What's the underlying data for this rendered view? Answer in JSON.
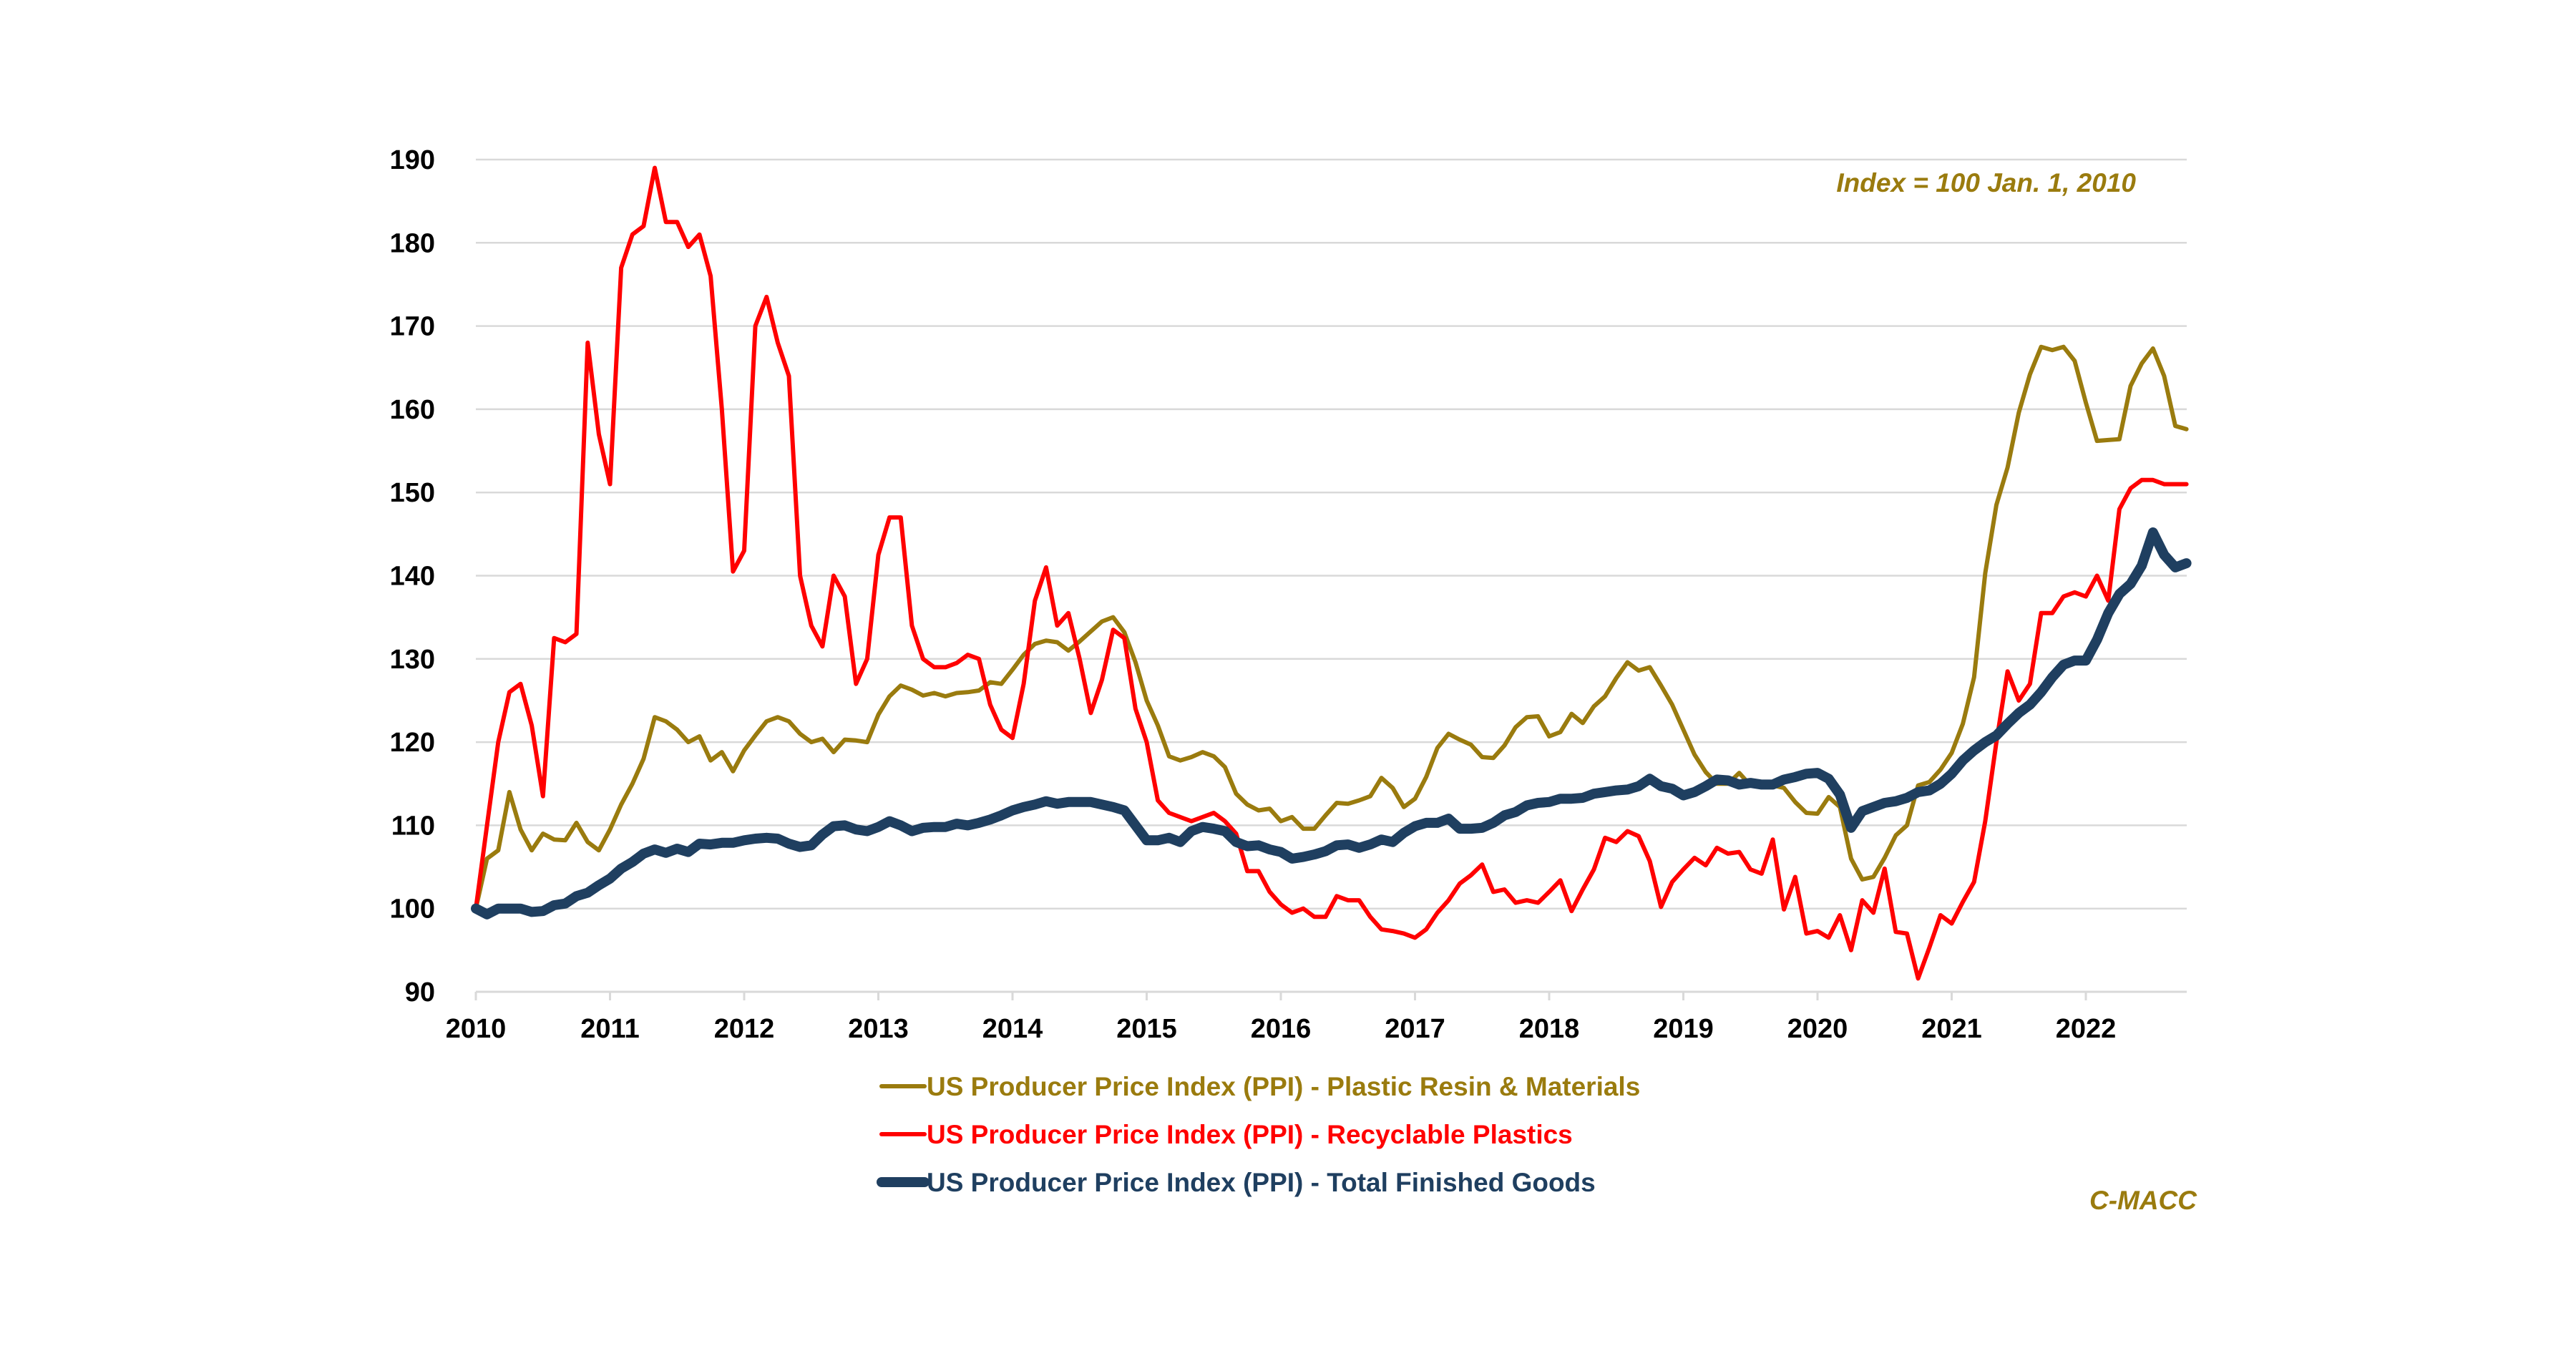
{
  "chart_data": {
    "type": "line",
    "annotation": "Index = 100 Jan. 1, 2010",
    "source": "C-MACC",
    "ylim": [
      90,
      190
    ],
    "yticks": [
      90,
      100,
      110,
      120,
      130,
      140,
      150,
      160,
      170,
      180,
      190
    ],
    "xticks": [
      "2010",
      "2011",
      "2012",
      "2013",
      "2014",
      "2015",
      "2016",
      "2017",
      "2018",
      "2019",
      "2020",
      "2021",
      "2022"
    ],
    "xlim": [
      "2010-01",
      "2022-10"
    ],
    "grid": "horizontal",
    "legend_position": "bottom",
    "x": [
      "2010-01",
      "2010-02",
      "2010-03",
      "2010-04",
      "2010-05",
      "2010-06",
      "2010-07",
      "2010-08",
      "2010-09",
      "2010-10",
      "2010-11",
      "2010-12",
      "2011-01",
      "2011-02",
      "2011-03",
      "2011-04",
      "2011-05",
      "2011-06",
      "2011-07",
      "2011-08",
      "2011-09",
      "2011-10",
      "2011-11",
      "2011-12",
      "2012-01",
      "2012-02",
      "2012-03",
      "2012-04",
      "2012-05",
      "2012-06",
      "2012-07",
      "2012-08",
      "2012-09",
      "2012-10",
      "2012-11",
      "2012-12",
      "2013-01",
      "2013-02",
      "2013-03",
      "2013-04",
      "2013-05",
      "2013-06",
      "2013-07",
      "2013-08",
      "2013-09",
      "2013-10",
      "2013-11",
      "2013-12",
      "2014-01",
      "2014-02",
      "2014-03",
      "2014-04",
      "2014-05",
      "2014-06",
      "2014-07",
      "2014-08",
      "2014-09",
      "2014-10",
      "2014-11",
      "2014-12",
      "2015-01",
      "2015-02",
      "2015-03",
      "2015-04",
      "2015-05",
      "2015-06",
      "2015-07",
      "2015-08",
      "2015-09",
      "2015-10",
      "2015-11",
      "2015-12",
      "2016-01",
      "2016-02",
      "2016-03",
      "2016-04",
      "2016-05",
      "2016-06",
      "2016-07",
      "2016-08",
      "2016-09",
      "2016-10",
      "2016-11",
      "2016-12",
      "2017-01",
      "2017-02",
      "2017-03",
      "2017-04",
      "2017-05",
      "2017-06",
      "2017-07",
      "2017-08",
      "2017-09",
      "2017-10",
      "2017-11",
      "2017-12",
      "2018-01",
      "2018-02",
      "2018-03",
      "2018-04",
      "2018-05",
      "2018-06",
      "2018-07",
      "2018-08",
      "2018-09",
      "2018-10",
      "2018-11",
      "2018-12",
      "2019-01",
      "2019-02",
      "2019-03",
      "2019-04",
      "2019-05",
      "2019-06",
      "2019-07",
      "2019-08",
      "2019-09",
      "2019-10",
      "2019-11",
      "2019-12",
      "2020-01",
      "2020-02",
      "2020-03",
      "2020-04",
      "2020-05",
      "2020-06",
      "2020-07",
      "2020-08",
      "2020-09",
      "2020-10",
      "2020-11",
      "2020-12",
      "2021-01",
      "2021-02",
      "2021-03",
      "2021-04",
      "2021-05",
      "2021-06",
      "2021-07",
      "2021-08",
      "2021-09",
      "2021-10",
      "2021-11",
      "2021-12",
      "2022-01",
      "2022-02",
      "2022-03",
      "2022-04",
      "2022-05",
      "2022-06",
      "2022-07",
      "2022-08",
      "2022-09",
      "2022-10"
    ],
    "series": [
      {
        "name": "US Producer Price Index (PPI) - Plastic Resin & Materials",
        "color": "#9A7B0E",
        "values": [
          100,
          106,
          107,
          114,
          109.5,
          107,
          109,
          108.3,
          108.2,
          110.3,
          108,
          107,
          109.5,
          112.5,
          115,
          118,
          123,
          122.5,
          121.5,
          120,
          120.7,
          117.8,
          118.8,
          116.5,
          119,
          120.8,
          122.5,
          123,
          122.5,
          121,
          120,
          120.4,
          118.8,
          120.3,
          120.2,
          120,
          123.3,
          125.5,
          126.8,
          126.3,
          125.6,
          125.9,
          125.5,
          125.9,
          126,
          126.2,
          127.2,
          127,
          128.7,
          130.5,
          131.8,
          132.2,
          132,
          131,
          132.1,
          133.3,
          134.5,
          135,
          133.2,
          129.6,
          125,
          122,
          118.3,
          117.8,
          118.2,
          118.8,
          118.3,
          117,
          113.8,
          112.5,
          111.8,
          112,
          110.5,
          111,
          109.6,
          109.6,
          111.2,
          112.7,
          112.6,
          113,
          113.5,
          115.7,
          114.5,
          112.2,
          113.2,
          115.8,
          119.3,
          121,
          120.3,
          119.7,
          118.2,
          118.1,
          119.6,
          121.8,
          123,
          123.1,
          120.7,
          121.2,
          123.4,
          122.3,
          124.3,
          125.5,
          127.7,
          129.6,
          128.6,
          129,
          126.8,
          124.5,
          121.5,
          118.5,
          116.4,
          115,
          115,
          116.3,
          114.8,
          115,
          114.8,
          114.5,
          112.8,
          111.5,
          111.4,
          113.4,
          112.2,
          106,
          103.5,
          103.8,
          106.1,
          108.8,
          110,
          114.8,
          115.2,
          116.7,
          118.7,
          122.2,
          127.8,
          140.3,
          148.5,
          153,
          159.6,
          164.2,
          167.5,
          167.1,
          167.5,
          165.8,
          160.8,
          156.2,
          156.3,
          156.4,
          162.8,
          165.5,
          167.3,
          164,
          158,
          157.6
        ]
      },
      {
        "name": "US Producer Price Index (PPI) - Recyclable Plastics",
        "color": "#FF0000",
        "values": [
          100,
          110,
          120,
          126,
          127,
          122,
          113.5,
          132.5,
          132,
          133,
          168,
          157,
          151,
          177,
          181,
          182,
          189,
          182.5,
          182.5,
          179.5,
          181,
          176,
          160,
          140.5,
          143,
          170,
          173.5,
          168,
          164,
          140,
          134,
          131.5,
          140,
          137.5,
          127,
          130,
          142.5,
          147,
          147,
          134,
          130,
          129,
          129,
          129.5,
          130.5,
          130,
          124.5,
          121.5,
          120.5,
          127,
          137,
          141,
          134,
          135.5,
          130,
          123.5,
          127.5,
          133.5,
          132.5,
          124,
          120,
          113,
          111.5,
          111,
          110.5,
          111,
          111.5,
          110.5,
          109,
          104.5,
          104.5,
          102,
          100.5,
          99.5,
          100,
          99,
          99,
          101.5,
          101,
          101,
          99,
          97.5,
          97.3,
          97,
          96.5,
          97.5,
          99.5,
          101,
          103,
          104,
          105.3,
          102,
          102.3,
          100.7,
          101,
          100.7,
          102,
          103.4,
          99.7,
          102.3,
          104.7,
          108.5,
          108,
          109.3,
          108.7,
          105.7,
          100.2,
          103.2,
          104.7,
          106.1,
          105.2,
          107.3,
          106.6,
          106.8,
          104.7,
          104.2,
          108.3,
          99.9,
          103.8,
          97,
          97.3,
          96.5,
          99.2,
          95,
          101,
          99.5,
          104.8,
          97.2,
          97,
          91.6,
          95.3,
          99.2,
          98.2,
          100.8,
          103.2,
          110.5,
          120,
          128.5,
          125,
          127,
          135.5,
          135.5,
          137.5,
          138,
          137.5,
          140,
          137,
          148,
          150.5,
          151.5,
          151.5,
          151,
          151,
          151
        ]
      },
      {
        "name": "US Producer Price Index (PPI) - Total Finished Goods",
        "color": "#1F3F60",
        "values": [
          100,
          99.3,
          100,
          100,
          100,
          99.6,
          99.7,
          100.4,
          100.6,
          101.5,
          101.9,
          102.8,
          103.6,
          104.8,
          105.6,
          106.6,
          107.1,
          106.7,
          107.2,
          106.8,
          107.8,
          107.7,
          107.9,
          107.9,
          108.2,
          108.4,
          108.5,
          108.4,
          107.8,
          107.4,
          107.6,
          108.9,
          109.9,
          110,
          109.5,
          109.3,
          109.8,
          110.5,
          110,
          109.3,
          109.7,
          109.8,
          109.8,
          110.2,
          110,
          110.3,
          110.7,
          111.2,
          111.8,
          112.2,
          112.5,
          112.9,
          112.6,
          112.8,
          112.8,
          112.8,
          112.5,
          112.2,
          111.8,
          110,
          108.2,
          108.2,
          108.5,
          108,
          109.3,
          109.8,
          109.6,
          109.3,
          108,
          107.5,
          107.6,
          107.1,
          106.8,
          106,
          106.2,
          106.5,
          106.9,
          107.6,
          107.7,
          107.3,
          107.7,
          108.3,
          108,
          109.1,
          109.9,
          110.3,
          110.3,
          110.8,
          109.6,
          109.6,
          109.7,
          110.3,
          111.2,
          111.6,
          112.4,
          112.7,
          112.8,
          113.2,
          113.2,
          113.3,
          113.8,
          114,
          114.2,
          114.3,
          114.7,
          115.6,
          114.7,
          114.4,
          113.6,
          114,
          114.7,
          115.5,
          115.4,
          114.9,
          115.1,
          114.9,
          114.9,
          115.5,
          115.8,
          116.2,
          116.3,
          115.6,
          113.7,
          109.7,
          111.7,
          112.2,
          112.7,
          112.9,
          113.3,
          114,
          114.2,
          115,
          116.2,
          117.8,
          119,
          120,
          120.8,
          122.2,
          123.5,
          124.5,
          126,
          127.8,
          129.3,
          129.8,
          129.8,
          132.3,
          135.5,
          137.8,
          139,
          141.2,
          145.2,
          142.5,
          141,
          141.5
        ]
      }
    ]
  }
}
